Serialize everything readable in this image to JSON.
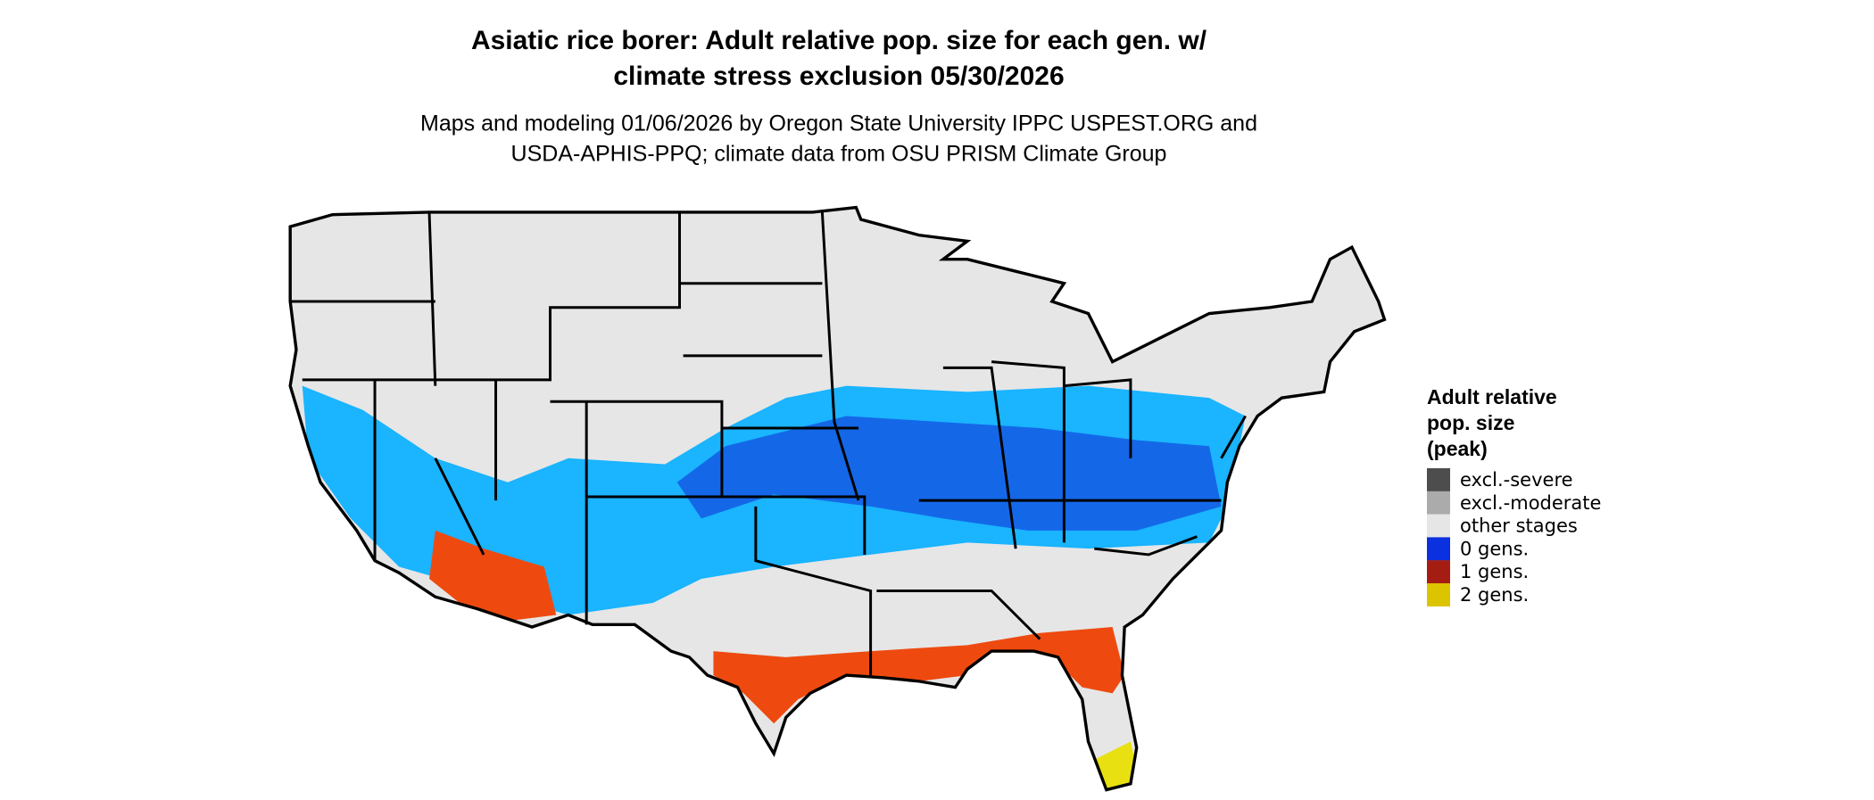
{
  "title": [
    "Asiatic rice borer: Adult relative pop. size for each gen. w/",
    "climate stress exclusion 05/30/2026"
  ],
  "subtitle": [
    "Maps and modeling 01/06/2026 by Oregon State University IPPC USPEST.ORG and",
    "USDA-APHIS-PPQ; climate data from OSU PRISM Climate Group"
  ],
  "legend": {
    "title": [
      "Adult relative",
      "pop. size",
      "(peak)"
    ],
    "items": [
      {
        "label": "excl.-severe",
        "color": "#4d4d4d"
      },
      {
        "label": "excl.-moderate",
        "color": "#ababab"
      },
      {
        "label": "other stages",
        "color": "#e6e6e6"
      },
      {
        "label": "0 gens.",
        "color": "#0a30e0"
      },
      {
        "label": "1 gens.",
        "color": "#a51d12"
      },
      {
        "label": "2 gens.",
        "color": "#dcc400"
      }
    ]
  }
}
